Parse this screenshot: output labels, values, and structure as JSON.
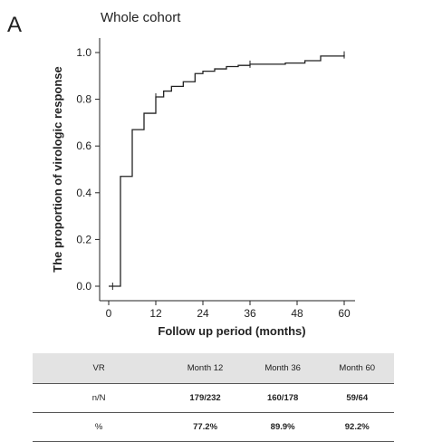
{
  "panel_letter": "A",
  "chart_data": {
    "type": "line",
    "step": true,
    "title": "Whole cohort",
    "xlabel": "Follow up period (months)",
    "ylabel": "The proportion of virologic response",
    "xlim": [
      0,
      60
    ],
    "ylim": [
      0,
      1.0
    ],
    "xticks": [
      0,
      12,
      24,
      36,
      48,
      60
    ],
    "yticks": [
      0.0,
      0.2,
      0.4,
      0.6,
      0.8,
      1.0
    ],
    "ytick_labels": [
      "0.0",
      "0.2",
      "0.4",
      "0.6",
      "0.8",
      "1.0"
    ],
    "grid": false,
    "legend": "none",
    "x": [
      0,
      3,
      6,
      9,
      12,
      14,
      16,
      19,
      22,
      24,
      27,
      30,
      33,
      36,
      45,
      50,
      54,
      60
    ],
    "y": [
      0.0,
      0.47,
      0.67,
      0.74,
      0.81,
      0.835,
      0.855,
      0.875,
      0.91,
      0.92,
      0.93,
      0.94,
      0.945,
      0.95,
      0.955,
      0.965,
      0.985,
      0.99
    ],
    "censor_marks": [
      {
        "x": 1,
        "y": 0.0
      },
      {
        "x": 12,
        "y": 0.81
      },
      {
        "x": 36,
        "y": 0.95
      },
      {
        "x": 60,
        "y": 0.99
      }
    ],
    "line_color": "#222222"
  },
  "table": {
    "headers": [
      "VR",
      "Month 12",
      "Month 36",
      "Month 60"
    ],
    "rows": [
      {
        "label": "n/N",
        "values": [
          "179/232",
          "160/178",
          "59/64"
        ]
      },
      {
        "label": "%",
        "values": [
          "77.2%",
          "89.9%",
          "92.2%"
        ]
      }
    ]
  }
}
